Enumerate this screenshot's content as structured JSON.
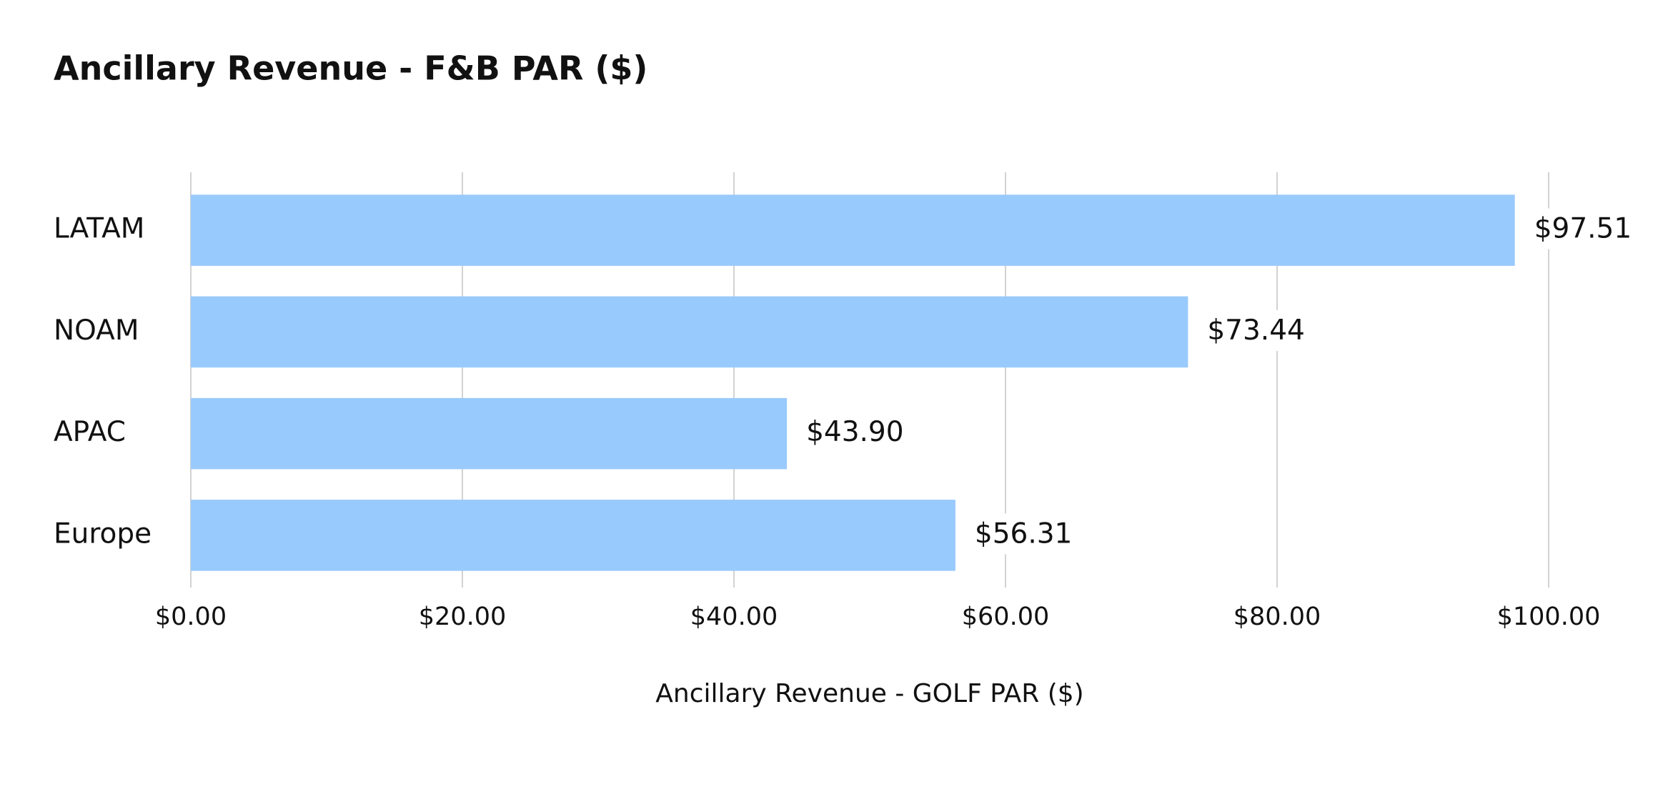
{
  "chart_data": {
    "type": "barh",
    "title": "Ancillary Revenue - F&B PAR ($)",
    "x_label": "Ancillary Revenue - GOLF PAR ($)",
    "categories": [
      "LATAM",
      "NOAM",
      "APAC",
      "Europe"
    ],
    "values": [
      97.51,
      73.44,
      43.9,
      56.31
    ],
    "value_labels": [
      "$97.51",
      "$73.44",
      "$43.90",
      "$56.31"
    ],
    "color": "#99cafd",
    "xlim": [
      0,
      100
    ],
    "xticks": [
      {
        "value": 0,
        "label": "$0.00"
      },
      {
        "value": 20,
        "label": "$20.00"
      },
      {
        "value": 40,
        "label": "$40.00"
      },
      {
        "value": 60,
        "label": "$60.00"
      },
      {
        "value": 80,
        "label": "$80.00"
      },
      {
        "value": 100,
        "label": "$100.00"
      }
    ],
    "grid": true
  }
}
